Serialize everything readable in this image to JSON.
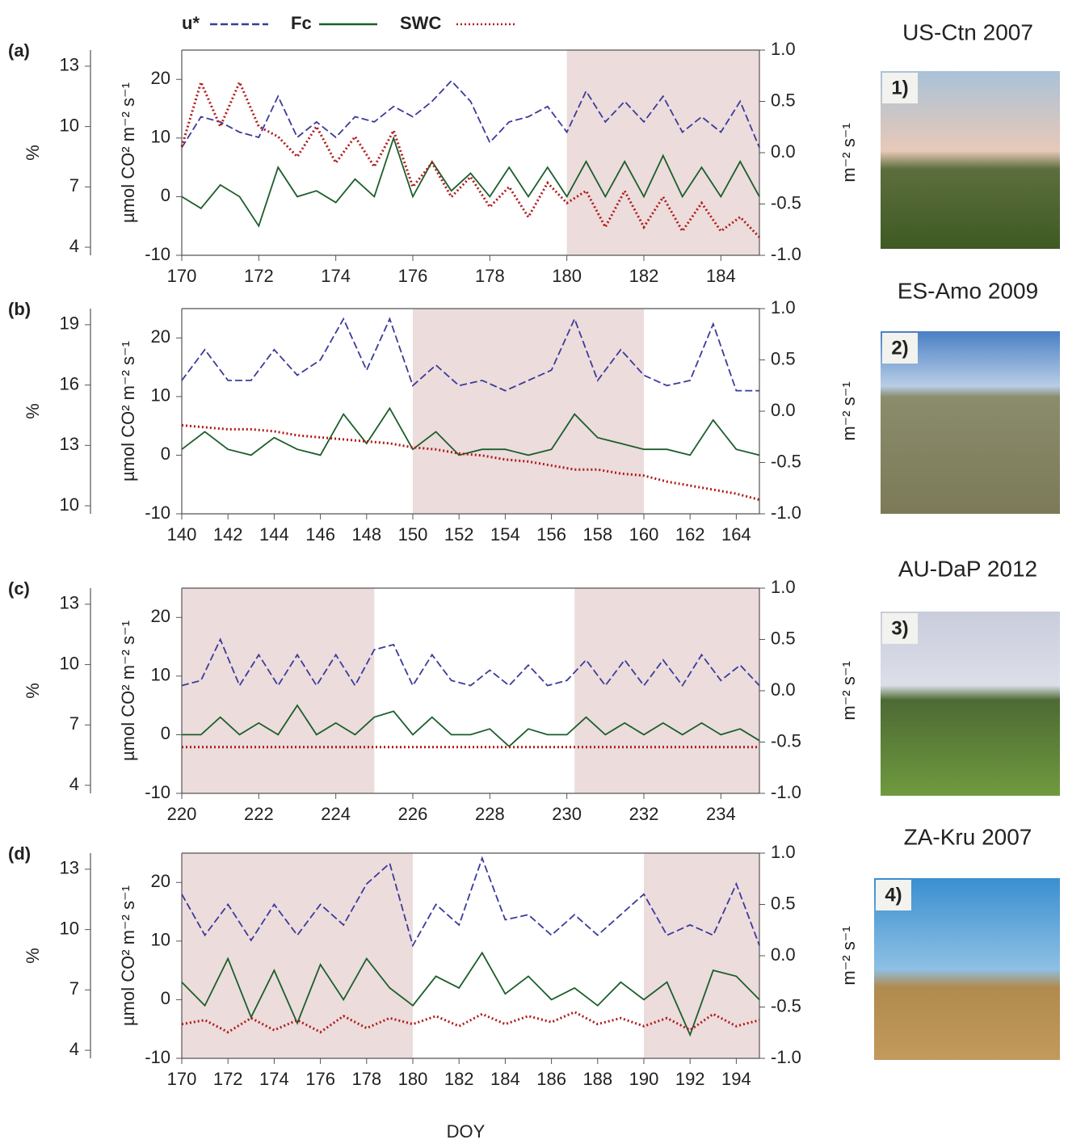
{
  "chart_data": [
    {
      "type": "line",
      "panel_label": "(a)",
      "site": "US-Ctn 2007",
      "photo_label": "1)",
      "y3label": "%",
      "ylabel": "µmol CO² m⁻² s⁻¹",
      "y2label": "m⁻² s⁻¹",
      "xlim": [
        170,
        185
      ],
      "xticks": [
        170,
        172,
        174,
        176,
        178,
        180,
        182,
        184
      ],
      "ylim": [
        -10,
        25
      ],
      "yticks": [
        -10,
        0,
        10,
        20
      ],
      "y2lim": [
        -1,
        1
      ],
      "y2ticks": [
        {
          "value": 1,
          "label": "1.0"
        },
        {
          "value": 0.5,
          "label": "0.5"
        },
        {
          "value": 0,
          "label": "0.0"
        },
        {
          "value": -0.5,
          "label": "-0.5"
        },
        {
          "value": -1,
          "label": "-1.0"
        }
      ],
      "y3lim": [
        3.6,
        13.8
      ],
      "y3ticks": [
        4,
        7,
        10,
        13
      ],
      "highlight_ranges": [
        [
          180,
          185
        ]
      ],
      "x": [
        170,
        170.5,
        171,
        171.5,
        172,
        172.5,
        173,
        173.5,
        174,
        174.5,
        175,
        175.5,
        176,
        176.5,
        177,
        177.5,
        178,
        178.5,
        179,
        179.5,
        180,
        180.5,
        181,
        181.5,
        182,
        182.5,
        183,
        183.5,
        184,
        184.5,
        185
      ],
      "series": [
        {
          "name": "u*",
          "color": "#3b3b9a",
          "axis": "y2",
          "style": "dashed",
          "values": [
            0.05,
            0.35,
            0.3,
            0.2,
            0.15,
            0.55,
            0.15,
            0.3,
            0.15,
            0.35,
            0.3,
            0.45,
            0.35,
            0.5,
            0.7,
            0.5,
            0.1,
            0.3,
            0.35,
            0.45,
            0.2,
            0.6,
            0.3,
            0.5,
            0.3,
            0.55,
            0.2,
            0.35,
            0.2,
            0.5,
            0.05
          ]
        },
        {
          "name": "Fc",
          "color": "#1b5e2b",
          "axis": "y",
          "style": "solid",
          "values": [
            0,
            -2,
            2,
            0,
            -5,
            5,
            0,
            1,
            -1,
            3,
            0,
            10,
            0,
            6,
            1,
            4,
            0,
            5,
            0,
            5,
            0,
            6,
            0,
            6,
            0,
            7,
            0,
            5,
            0,
            6,
            0
          ]
        },
        {
          "name": "SWC",
          "color": "#b01a1a",
          "axis": "y3",
          "style": "dotted",
          "values": [
            9,
            12.2,
            10,
            12.2,
            10,
            9.5,
            8.5,
            10,
            8.2,
            9.5,
            8,
            9.8,
            7,
            8.2,
            6.5,
            7.5,
            6,
            7,
            5.5,
            7.2,
            6.2,
            6.8,
            5,
            6.8,
            5,
            6.5,
            4.8,
            6.2,
            4.8,
            5.5,
            4.5
          ]
        }
      ]
    },
    {
      "type": "line",
      "panel_label": "(b)",
      "site": "ES-Amo 2009",
      "photo_label": "2)",
      "y3label": "%",
      "ylabel": "µmol CO² m⁻² s⁻¹",
      "y2label": "m⁻² s⁻¹",
      "xlim": [
        140,
        165
      ],
      "xticks": [
        140,
        142,
        144,
        146,
        148,
        150,
        152,
        154,
        156,
        158,
        160,
        162,
        164
      ],
      "ylim": [
        -10,
        25
      ],
      "yticks": [
        -10,
        0,
        10,
        20
      ],
      "y2lim": [
        -1,
        1
      ],
      "y2ticks": [
        {
          "value": 1,
          "label": "1.0"
        },
        {
          "value": 0.5,
          "label": "0.5"
        },
        {
          "value": 0,
          "label": "0.0"
        },
        {
          "value": -0.5,
          "label": "-0.5"
        },
        {
          "value": -1,
          "label": "-1.0"
        }
      ],
      "y3lim": [
        9.6,
        19.8
      ],
      "y3ticks": [
        10,
        13,
        16,
        19
      ],
      "highlight_ranges": [
        [
          150,
          160
        ]
      ],
      "x": [
        140,
        141,
        142,
        143,
        144,
        145,
        146,
        147,
        148,
        149,
        150,
        151,
        152,
        153,
        154,
        155,
        156,
        157,
        158,
        159,
        160,
        161,
        162,
        163,
        164,
        165
      ],
      "series": [
        {
          "color": "#3b3b9a",
          "axis": "y2",
          "style": "dashed",
          "values": [
            0.3,
            0.6,
            0.3,
            0.3,
            0.6,
            0.35,
            0.5,
            0.9,
            0.4,
            0.9,
            0.25,
            0.45,
            0.25,
            0.3,
            0.2,
            0.3,
            0.4,
            0.9,
            0.3,
            0.6,
            0.35,
            0.25,
            0.3,
            0.85,
            0.2,
            0.2
          ]
        },
        {
          "color": "#1b5e2b",
          "axis": "y",
          "style": "solid",
          "values": [
            1,
            4,
            1,
            0,
            3,
            1,
            0,
            7,
            2,
            8,
            1,
            4,
            0,
            1,
            1,
            0,
            1,
            7,
            3,
            2,
            1,
            1,
            0,
            6,
            1,
            0
          ]
        },
        {
          "color": "#b01a1a",
          "axis": "y3",
          "style": "dotted",
          "values": [
            14,
            13.9,
            13.8,
            13.8,
            13.7,
            13.5,
            13.4,
            13.3,
            13.2,
            13.1,
            12.9,
            12.8,
            12.6,
            12.5,
            12.3,
            12.2,
            12,
            11.8,
            11.8,
            11.6,
            11.5,
            11.2,
            11,
            10.8,
            10.6,
            10.3
          ]
        }
      ]
    },
    {
      "type": "line",
      "panel_label": "(c)",
      "site": "AU-DaP 2012",
      "photo_label": "3)",
      "y3label": "%",
      "ylabel": "µmol CO² m⁻² s⁻¹",
      "y2label": "m⁻² s⁻¹",
      "xlim": [
        220,
        235
      ],
      "xticks": [
        220,
        222,
        224,
        226,
        228,
        230,
        232,
        234
      ],
      "ylim": [
        -10,
        25
      ],
      "yticks": [
        -10,
        0,
        10,
        20
      ],
      "y2lim": [
        -1,
        1
      ],
      "y2ticks": [
        {
          "value": 1,
          "label": "1.0"
        },
        {
          "value": 0.5,
          "label": "0.5"
        },
        {
          "value": 0,
          "label": "0.0"
        },
        {
          "value": -0.5,
          "label": "-0.5"
        },
        {
          "value": -1,
          "label": "-1.0"
        }
      ],
      "y3lim": [
        3.6,
        13.8
      ],
      "y3ticks": [
        4,
        7,
        10,
        13
      ],
      "highlight_ranges": [
        [
          220,
          225
        ],
        [
          230.2,
          235
        ]
      ],
      "x": [
        220,
        220.5,
        221,
        221.5,
        222,
        222.5,
        223,
        223.5,
        224,
        224.5,
        225,
        225.5,
        226,
        226.5,
        227,
        227.5,
        228,
        228.5,
        229,
        229.5,
        230,
        230.5,
        231,
        231.5,
        232,
        232.5,
        233,
        233.5,
        234,
        234.5,
        235
      ],
      "series": [
        {
          "color": "#3b3b9a",
          "axis": "y2",
          "style": "dashed",
          "values": [
            0.05,
            0.1,
            0.5,
            0.05,
            0.35,
            0.05,
            0.35,
            0.05,
            0.35,
            0.05,
            0.4,
            0.45,
            0.05,
            0.35,
            0.1,
            0.05,
            0.2,
            0.05,
            0.25,
            0.05,
            0.1,
            0.3,
            0.05,
            0.3,
            0.05,
            0.3,
            0.05,
            0.35,
            0.1,
            0.25,
            0.05
          ]
        },
        {
          "color": "#1b5e2b",
          "axis": "y",
          "style": "solid",
          "values": [
            0,
            0,
            3,
            0,
            2,
            0,
            5,
            0,
            2,
            0,
            3,
            4,
            0,
            3,
            0,
            0,
            1,
            -2,
            1,
            0,
            0,
            3,
            0,
            2,
            0,
            2,
            0,
            2,
            0,
            1,
            -1
          ]
        },
        {
          "color": "#b01a1a",
          "axis": "y3",
          "style": "dotted",
          "values": [
            5.9,
            5.9,
            5.9,
            5.9,
            5.9,
            5.9,
            5.9,
            5.9,
            5.9,
            5.9,
            5.9,
            5.9,
            5.9,
            5.9,
            5.9,
            5.9,
            5.9,
            5.9,
            5.9,
            5.9,
            5.9,
            5.9,
            5.9,
            5.9,
            5.9,
            5.9,
            5.9,
            5.9,
            5.9,
            5.9,
            5.9
          ]
        }
      ]
    },
    {
      "type": "line",
      "panel_label": "(d)",
      "site": "ZA-Kru 2007",
      "photo_label": "4)",
      "y3label": "%",
      "ylabel": "µmol CO² m⁻² s⁻¹",
      "y2label": "m⁻² s⁻¹",
      "xlabel": "DOY",
      "xlim": [
        170,
        195
      ],
      "xticks": [
        170,
        172,
        174,
        176,
        178,
        180,
        182,
        184,
        186,
        188,
        190,
        192,
        194
      ],
      "ylim": [
        -10,
        25
      ],
      "yticks": [
        -10,
        0,
        10,
        20
      ],
      "y2lim": [
        -1,
        1
      ],
      "y2ticks": [
        {
          "value": 1,
          "label": "1.0"
        },
        {
          "value": 0.5,
          "label": "0.5"
        },
        {
          "value": 0,
          "label": "0.0"
        },
        {
          "value": -0.5,
          "label": "-0.5"
        },
        {
          "value": -1,
          "label": "-1.0"
        }
      ],
      "y3lim": [
        3.6,
        13.8
      ],
      "y3ticks": [
        4,
        7,
        10,
        13
      ],
      "highlight_ranges": [
        [
          170,
          180
        ],
        [
          190,
          195
        ]
      ],
      "x": [
        170,
        171,
        172,
        173,
        174,
        175,
        176,
        177,
        178,
        179,
        180,
        181,
        182,
        183,
        184,
        185,
        186,
        187,
        188,
        189,
        190,
        191,
        192,
        193,
        194,
        195
      ],
      "series": [
        {
          "color": "#3b3b9a",
          "axis": "y2",
          "style": "dashed",
          "values": [
            0.6,
            0.2,
            0.5,
            0.15,
            0.5,
            0.2,
            0.5,
            0.3,
            0.7,
            0.9,
            0.1,
            0.5,
            0.3,
            0.95,
            0.35,
            0.4,
            0.2,
            0.4,
            0.2,
            0.4,
            0.6,
            0.2,
            0.3,
            0.2,
            0.7,
            0.1
          ]
        },
        {
          "color": "#1b5e2b",
          "axis": "y",
          "style": "solid",
          "values": [
            3,
            -1,
            7,
            -3,
            5,
            -4,
            6,
            0,
            7,
            2,
            -1,
            4,
            2,
            8,
            1,
            4,
            0,
            2,
            -1,
            3,
            0,
            3,
            -6,
            5,
            4,
            0
          ]
        },
        {
          "color": "#b01a1a",
          "axis": "y3",
          "style": "dotted",
          "values": [
            5.3,
            5.5,
            4.9,
            5.6,
            5,
            5.5,
            4.9,
            5.7,
            5.1,
            5.6,
            5.3,
            5.7,
            5.2,
            5.8,
            5.3,
            5.7,
            5.4,
            5.9,
            5.3,
            5.6,
            5.2,
            5.6,
            5,
            5.8,
            5.2,
            5.5
          ]
        }
      ]
    }
  ]
}
